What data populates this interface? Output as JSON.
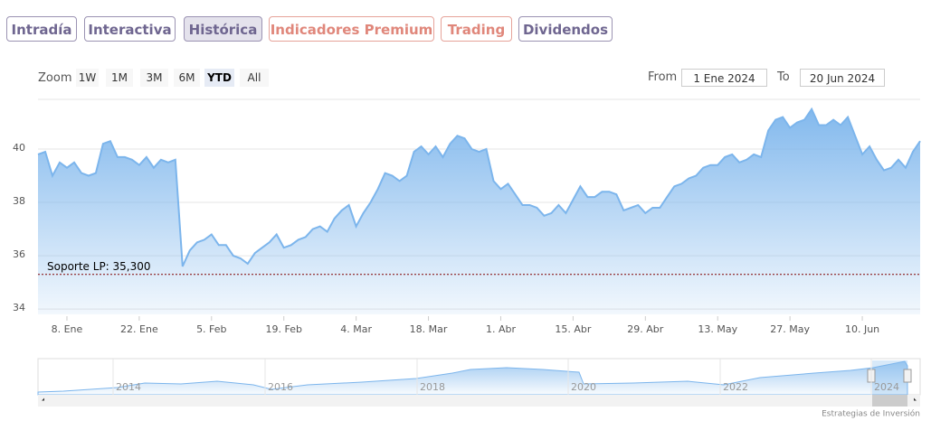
{
  "tabs": [
    "Intradía",
    "Interactiva",
    "Histórica",
    "Indicadores Premium",
    "Trading",
    "Dividendos"
  ],
  "zoom": {
    "label": "Zoom",
    "buttons": [
      "1W",
      "1M",
      "3M",
      "6M",
      "YTD",
      "All"
    ]
  },
  "range": {
    "from_label": "From",
    "from": "1 Ene 2024",
    "to_label": "To",
    "to": "20 Jun 2024"
  },
  "navigator": {
    "labels": [
      "2014",
      "2016",
      "2018",
      "2020",
      "2022",
      "2024"
    ]
  },
  "credits": "Estrategias de Inversión",
  "chart_data": {
    "type": "area",
    "x": [
      "2024-01-02",
      "2024-01-03",
      "2024-01-04",
      "2024-01-05",
      "2024-01-08",
      "2024-01-09",
      "2024-01-10",
      "2024-01-11",
      "2024-01-12",
      "2024-01-15",
      "2024-01-16",
      "2024-01-17",
      "2024-01-18",
      "2024-01-19",
      "2024-01-22",
      "2024-01-23",
      "2024-01-24",
      "2024-01-25",
      "2024-01-26",
      "2024-01-29",
      "2024-01-30",
      "2024-01-31",
      "2024-02-01",
      "2024-02-02",
      "2024-02-05",
      "2024-02-06",
      "2024-02-07",
      "2024-02-08",
      "2024-02-09",
      "2024-02-12",
      "2024-02-13",
      "2024-02-14",
      "2024-02-15",
      "2024-02-16",
      "2024-02-19",
      "2024-02-20",
      "2024-02-21",
      "2024-02-22",
      "2024-02-23",
      "2024-02-26",
      "2024-02-27",
      "2024-02-28",
      "2024-02-29",
      "2024-03-01",
      "2024-03-04",
      "2024-03-05",
      "2024-03-06",
      "2024-03-07",
      "2024-03-08",
      "2024-03-11",
      "2024-03-12",
      "2024-03-13",
      "2024-03-14",
      "2024-03-15",
      "2024-03-18",
      "2024-03-19",
      "2024-03-20",
      "2024-03-21",
      "2024-03-22",
      "2024-03-25",
      "2024-03-26",
      "2024-03-27",
      "2024-03-28",
      "2024-03-29",
      "2024-04-01",
      "2024-04-02",
      "2024-04-03",
      "2024-04-04",
      "2024-04-05",
      "2024-04-08",
      "2024-04-09",
      "2024-04-10",
      "2024-04-11",
      "2024-04-12",
      "2024-04-15",
      "2024-04-16",
      "2024-04-17",
      "2024-04-18",
      "2024-04-19",
      "2024-04-22",
      "2024-04-23",
      "2024-04-24",
      "2024-04-25",
      "2024-04-26",
      "2024-04-29",
      "2024-04-30",
      "2024-05-01",
      "2024-05-02",
      "2024-05-03",
      "2024-05-06",
      "2024-05-07",
      "2024-05-08",
      "2024-05-09",
      "2024-05-10",
      "2024-05-13",
      "2024-05-14",
      "2024-05-15",
      "2024-05-16",
      "2024-05-17",
      "2024-05-20",
      "2024-05-21",
      "2024-05-22",
      "2024-05-23",
      "2024-05-24",
      "2024-05-27",
      "2024-05-28",
      "2024-05-29",
      "2024-05-30",
      "2024-05-31",
      "2024-06-03",
      "2024-06-04",
      "2024-06-05",
      "2024-06-06",
      "2024-06-07",
      "2024-06-10",
      "2024-06-11",
      "2024-06-12",
      "2024-06-13",
      "2024-06-14",
      "2024-06-17",
      "2024-06-18",
      "2024-06-19",
      "2024-06-20"
    ],
    "series": [
      {
        "color": "#7cb5ec",
        "values": [
          39.8,
          39.9,
          39.0,
          39.5,
          39.3,
          39.5,
          39.1,
          39.0,
          39.1,
          40.2,
          40.3,
          39.7,
          39.7,
          39.6,
          39.4,
          39.7,
          39.3,
          39.6,
          39.5,
          39.6,
          35.6,
          36.2,
          36.5,
          36.6,
          36.8,
          36.4,
          36.4,
          36.0,
          35.9,
          35.7,
          36.1,
          36.3,
          36.5,
          36.8,
          36.3,
          36.4,
          36.6,
          36.7,
          37.0,
          37.1,
          36.9,
          37.4,
          37.7,
          37.9,
          37.1,
          37.6,
          38.0,
          38.5,
          39.1,
          39.0,
          38.8,
          39.0,
          39.9,
          40.1,
          39.8,
          40.1,
          39.7,
          40.2,
          40.5,
          40.4,
          40.0,
          39.9,
          40.0,
          38.8,
          38.5,
          38.7,
          38.3,
          37.9,
          37.9,
          37.8,
          37.5,
          37.6,
          37.9,
          37.6,
          38.1,
          38.6,
          38.2,
          38.2,
          38.4,
          38.4,
          38.3,
          37.7,
          37.8,
          37.9,
          37.6,
          37.8,
          37.8,
          38.2,
          38.6,
          38.7,
          38.9,
          39.0,
          39.3,
          39.4,
          39.4,
          39.7,
          39.8,
          39.5,
          39.6,
          39.8,
          39.7,
          40.7,
          41.1,
          41.2,
          40.8,
          41.0,
          41.1,
          41.5,
          40.9,
          40.9,
          41.1,
          40.9,
          41.2,
          40.5,
          39.8,
          40.1,
          39.6,
          39.2,
          39.3,
          39.6,
          39.3,
          39.9,
          40.3
        ]
      }
    ],
    "xticks": [
      {
        "value": "2024-01-08",
        "label": "8. Ene"
      },
      {
        "value": "2024-01-22",
        "label": "22. Ene"
      },
      {
        "value": "2024-02-05",
        "label": "5. Feb"
      },
      {
        "value": "2024-02-19",
        "label": "19. Feb"
      },
      {
        "value": "2024-03-04",
        "label": "4. Mar"
      },
      {
        "value": "2024-03-18",
        "label": "18. Mar"
      },
      {
        "value": "2024-04-01",
        "label": "1. Abr"
      },
      {
        "value": "2024-04-15",
        "label": "15. Abr"
      },
      {
        "value": "2024-04-29",
        "label": "29. Abr"
      },
      {
        "value": "2024-05-13",
        "label": "13. May"
      },
      {
        "value": "2024-05-27",
        "label": "27. May"
      },
      {
        "value": "2024-06-10",
        "label": "10. Jun"
      }
    ],
    "ylim": [
      33.8,
      42
    ],
    "yticks": [
      34,
      36,
      38,
      40
    ],
    "grid": true,
    "plot_lines": [
      {
        "value": 35.3,
        "label": "Soporte LP: 35,300"
      }
    ]
  }
}
